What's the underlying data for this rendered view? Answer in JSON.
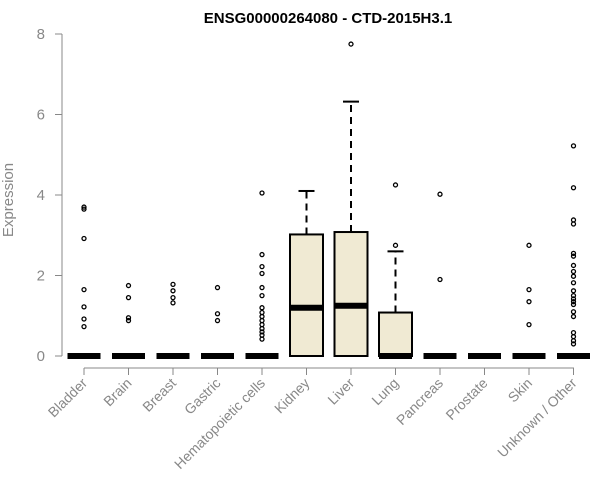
{
  "chart_data": {
    "type": "box",
    "title": "ENSG00000264080 - CTD-2015H3.1",
    "xlabel": "",
    "ylabel": "Expression",
    "ylim": [
      0,
      8
    ],
    "yticks": [
      0,
      2,
      4,
      6,
      8
    ],
    "grid": false,
    "box_fill": "#f0ead3",
    "categories": [
      "Bladder",
      "Brain",
      "Breast",
      "Gastric",
      "Hematopoietic cells",
      "Kidney",
      "Liver",
      "Lung",
      "Pancreas",
      "Prostate",
      "Skin",
      "Unknown / Other"
    ],
    "boxes": [
      {
        "q1": 0,
        "median": 0,
        "q3": 0,
        "whisker_low": 0,
        "whisker_high": 0,
        "outliers": [
          3.7,
          3.65,
          2.92,
          1.65,
          1.22,
          0.92,
          0.73
        ]
      },
      {
        "q1": 0,
        "median": 0,
        "q3": 0,
        "whisker_low": 0,
        "whisker_high": 0,
        "outliers": [
          1.75,
          1.45,
          0.95,
          0.88
        ]
      },
      {
        "q1": 0,
        "median": 0,
        "q3": 0,
        "whisker_low": 0,
        "whisker_high": 0,
        "outliers": [
          1.78,
          1.62,
          1.45,
          1.32
        ]
      },
      {
        "q1": 0,
        "median": 0,
        "q3": 0,
        "whisker_low": 0,
        "whisker_high": 0,
        "outliers": [
          1.7,
          1.05,
          0.88
        ]
      },
      {
        "q1": 0,
        "median": 0,
        "q3": 0,
        "whisker_low": 0,
        "whisker_high": 0,
        "outliers": [
          4.05,
          2.52,
          2.22,
          2.05,
          1.7,
          1.5,
          1.2,
          1.08,
          0.98,
          0.88,
          0.78,
          0.68,
          0.6,
          0.52,
          0.42
        ]
      },
      {
        "q1": 0,
        "median": 1.2,
        "q3": 3.02,
        "whisker_low": 0,
        "whisker_high": 4.1,
        "outliers": []
      },
      {
        "q1": 0,
        "median": 1.25,
        "q3": 3.08,
        "whisker_low": 0,
        "whisker_high": 6.32,
        "outliers": [
          7.75
        ]
      },
      {
        "q1": 0,
        "median": 0,
        "q3": 1.08,
        "whisker_low": 0,
        "whisker_high": 2.6,
        "outliers": [
          4.25,
          2.75
        ]
      },
      {
        "q1": 0,
        "median": 0,
        "q3": 0,
        "whisker_low": 0,
        "whisker_high": 0,
        "outliers": [
          4.02,
          1.9
        ]
      },
      {
        "q1": 0,
        "median": 0,
        "q3": 0,
        "whisker_low": 0,
        "whisker_high": 0,
        "outliers": []
      },
      {
        "q1": 0,
        "median": 0,
        "q3": 0,
        "whisker_low": 0,
        "whisker_high": 0,
        "outliers": [
          2.75,
          1.65,
          1.35,
          0.78
        ]
      },
      {
        "q1": 0,
        "median": 0,
        "q3": 0,
        "whisker_low": 0,
        "whisker_high": 0,
        "outliers": [
          5.22,
          4.18,
          3.38,
          3.28,
          2.55,
          2.48,
          2.25,
          2.1,
          1.98,
          1.82,
          1.62,
          1.5,
          1.42,
          1.35,
          1.28,
          1.1,
          0.98,
          0.58,
          0.48,
          0.38,
          0.3
        ]
      }
    ]
  }
}
